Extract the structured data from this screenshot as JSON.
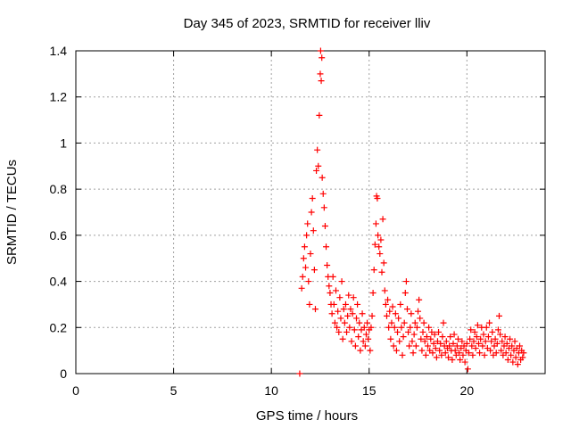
{
  "chart_data": {
    "type": "scatter",
    "title": "Day 345 of 2023, SRMTID for receiver lliv",
    "xlabel": "GPS time / hours",
    "ylabel": "SRMTID / TECUs",
    "xlim": [
      0,
      24
    ],
    "ylim": [
      0,
      1.4
    ],
    "xticks": [
      "0",
      "5",
      "10",
      "15",
      "20"
    ],
    "xtick_values": [
      0,
      5,
      10,
      15,
      20
    ],
    "yticks": [
      "0",
      "0.2",
      "0.4",
      "0.6",
      "0.8",
      "1",
      "1.2",
      "1.4"
    ],
    "ytick_values": [
      0,
      0.2,
      0.4,
      0.6,
      0.8,
      1.0,
      1.2,
      1.4
    ],
    "grid": true,
    "marker": "plus",
    "color": "#ff0000",
    "series": [
      {
        "name": "SRMTID",
        "points": [
          [
            11.45,
            0.0
          ],
          [
            11.55,
            0.37
          ],
          [
            11.6,
            0.42
          ],
          [
            11.65,
            0.5
          ],
          [
            11.7,
            0.55
          ],
          [
            11.75,
            0.46
          ],
          [
            11.8,
            0.6
          ],
          [
            11.85,
            0.65
          ],
          [
            11.9,
            0.4
          ],
          [
            11.95,
            0.3
          ],
          [
            12.0,
            0.52
          ],
          [
            12.05,
            0.7
          ],
          [
            12.1,
            0.76
          ],
          [
            12.15,
            0.62
          ],
          [
            12.2,
            0.45
          ],
          [
            12.25,
            0.28
          ],
          [
            12.3,
            0.88
          ],
          [
            12.35,
            0.97
          ],
          [
            12.4,
            0.9
          ],
          [
            12.45,
            1.12
          ],
          [
            12.5,
            1.3
          ],
          [
            12.52,
            1.4
          ],
          [
            12.55,
            1.27
          ],
          [
            12.58,
            1.37
          ],
          [
            12.6,
            0.85
          ],
          [
            12.65,
            0.78
          ],
          [
            12.7,
            0.72
          ],
          [
            12.75,
            0.64
          ],
          [
            12.8,
            0.55
          ],
          [
            12.85,
            0.47
          ],
          [
            12.9,
            0.42
          ],
          [
            12.95,
            0.38
          ],
          [
            13.0,
            0.35
          ],
          [
            13.05,
            0.3
          ],
          [
            13.1,
            0.26
          ],
          [
            13.15,
            0.42
          ],
          [
            13.2,
            0.3
          ],
          [
            13.25,
            0.22
          ],
          [
            13.3,
            0.36
          ],
          [
            13.35,
            0.2
          ],
          [
            13.4,
            0.27
          ],
          [
            13.45,
            0.18
          ],
          [
            13.5,
            0.33
          ],
          [
            13.55,
            0.24
          ],
          [
            13.6,
            0.4
          ],
          [
            13.65,
            0.15
          ],
          [
            13.7,
            0.28
          ],
          [
            13.75,
            0.22
          ],
          [
            13.8,
            0.3
          ],
          [
            13.85,
            0.18
          ],
          [
            13.9,
            0.25
          ],
          [
            13.95,
            0.34
          ],
          [
            14.0,
            0.2
          ],
          [
            14.05,
            0.28
          ],
          [
            14.1,
            0.14
          ],
          [
            14.15,
            0.26
          ],
          [
            14.2,
            0.33
          ],
          [
            14.25,
            0.19
          ],
          [
            14.3,
            0.12
          ],
          [
            14.35,
            0.24
          ],
          [
            14.4,
            0.3
          ],
          [
            14.45,
            0.16
          ],
          [
            14.5,
            0.22
          ],
          [
            14.55,
            0.1
          ],
          [
            14.6,
            0.19
          ],
          [
            14.65,
            0.26
          ],
          [
            14.7,
            0.14
          ],
          [
            14.75,
            0.2
          ],
          [
            14.8,
            0.12
          ],
          [
            14.85,
            0.17
          ],
          [
            14.9,
            0.22
          ],
          [
            14.95,
            0.15
          ],
          [
            15.0,
            0.19
          ],
          [
            15.05,
            0.1
          ],
          [
            15.1,
            0.2
          ],
          [
            15.15,
            0.25
          ],
          [
            15.2,
            0.35
          ],
          [
            15.25,
            0.45
          ],
          [
            15.3,
            0.56
          ],
          [
            15.35,
            0.65
          ],
          [
            15.38,
            0.77
          ],
          [
            15.42,
            0.76
          ],
          [
            15.45,
            0.6
          ],
          [
            15.5,
            0.55
          ],
          [
            15.55,
            0.52
          ],
          [
            15.6,
            0.58
          ],
          [
            15.65,
            0.44
          ],
          [
            15.7,
            0.67
          ],
          [
            15.75,
            0.48
          ],
          [
            15.8,
            0.36
          ],
          [
            15.85,
            0.3
          ],
          [
            15.9,
            0.25
          ],
          [
            15.95,
            0.32
          ],
          [
            16.0,
            0.2
          ],
          [
            16.05,
            0.27
          ],
          [
            16.1,
            0.15
          ],
          [
            16.15,
            0.22
          ],
          [
            16.2,
            0.29
          ],
          [
            16.25,
            0.12
          ],
          [
            16.3,
            0.2
          ],
          [
            16.35,
            0.26
          ],
          [
            16.4,
            0.1
          ],
          [
            16.45,
            0.18
          ],
          [
            16.5,
            0.24
          ],
          [
            16.55,
            0.14
          ],
          [
            16.6,
            0.3
          ],
          [
            16.65,
            0.2
          ],
          [
            16.7,
            0.08
          ],
          [
            16.75,
            0.16
          ],
          [
            16.8,
            0.22
          ],
          [
            16.85,
            0.35
          ],
          [
            16.9,
            0.4
          ],
          [
            16.95,
            0.28
          ],
          [
            17.0,
            0.18
          ],
          [
            17.05,
            0.12
          ],
          [
            17.1,
            0.2
          ],
          [
            17.15,
            0.26
          ],
          [
            17.2,
            0.14
          ],
          [
            17.25,
            0.09
          ],
          [
            17.3,
            0.17
          ],
          [
            17.35,
            0.22
          ],
          [
            17.4,
            0.12
          ],
          [
            17.45,
            0.2
          ],
          [
            17.5,
            0.27
          ],
          [
            17.55,
            0.32
          ],
          [
            17.6,
            0.24
          ],
          [
            17.65,
            0.15
          ],
          [
            17.7,
            0.1
          ],
          [
            17.75,
            0.18
          ],
          [
            17.8,
            0.22
          ],
          [
            17.85,
            0.14
          ],
          [
            17.9,
            0.08
          ],
          [
            17.95,
            0.16
          ],
          [
            18.0,
            0.12
          ],
          [
            18.05,
            0.2
          ],
          [
            18.1,
            0.1
          ],
          [
            18.15,
            0.15
          ],
          [
            18.2,
            0.18
          ],
          [
            18.25,
            0.09
          ],
          [
            18.3,
            0.13
          ],
          [
            18.35,
            0.17
          ],
          [
            18.4,
            0.11
          ],
          [
            18.45,
            0.07
          ],
          [
            18.5,
            0.14
          ],
          [
            18.55,
            0.18
          ],
          [
            18.6,
            0.1
          ],
          [
            18.65,
            0.13
          ],
          [
            18.7,
            0.08
          ],
          [
            18.75,
            0.16
          ],
          [
            18.8,
            0.22
          ],
          [
            18.85,
            0.12
          ],
          [
            18.9,
            0.09
          ],
          [
            18.95,
            0.14
          ],
          [
            19.0,
            0.11
          ],
          [
            19.05,
            0.07
          ],
          [
            19.1,
            0.12
          ],
          [
            19.15,
            0.16
          ],
          [
            19.2,
            0.1
          ],
          [
            19.25,
            0.06
          ],
          [
            19.3,
            0.13
          ],
          [
            19.35,
            0.17
          ],
          [
            19.4,
            0.1
          ],
          [
            19.45,
            0.08
          ],
          [
            19.5,
            0.12
          ],
          [
            19.55,
            0.15
          ],
          [
            19.6,
            0.09
          ],
          [
            19.65,
            0.06
          ],
          [
            19.7,
            0.11
          ],
          [
            19.75,
            0.14
          ],
          [
            19.8,
            0.08
          ],
          [
            19.85,
            0.12
          ],
          [
            19.9,
            0.05
          ],
          [
            19.95,
            0.1
          ],
          [
            20.0,
            0.13
          ],
          [
            20.05,
            0.02
          ],
          [
            20.1,
            0.09
          ],
          [
            20.15,
            0.15
          ],
          [
            20.2,
            0.19
          ],
          [
            20.25,
            0.12
          ],
          [
            20.3,
            0.08
          ],
          [
            20.35,
            0.14
          ],
          [
            20.4,
            0.18
          ],
          [
            20.45,
            0.11
          ],
          [
            20.5,
            0.16
          ],
          [
            20.55,
            0.21
          ],
          [
            20.6,
            0.13
          ],
          [
            20.65,
            0.09
          ],
          [
            20.7,
            0.15
          ],
          [
            20.75,
            0.2
          ],
          [
            20.8,
            0.12
          ],
          [
            20.85,
            0.17
          ],
          [
            20.9,
            0.08
          ],
          [
            20.95,
            0.14
          ],
          [
            21.0,
            0.2
          ],
          [
            21.05,
            0.11
          ],
          [
            21.1,
            0.16
          ],
          [
            21.15,
            0.22
          ],
          [
            21.2,
            0.1
          ],
          [
            21.25,
            0.14
          ],
          [
            21.3,
            0.18
          ],
          [
            21.35,
            0.08
          ],
          [
            21.4,
            0.12
          ],
          [
            21.45,
            0.15
          ],
          [
            21.5,
            0.09
          ],
          [
            21.55,
            0.13
          ],
          [
            21.6,
            0.19
          ],
          [
            21.65,
            0.25
          ],
          [
            21.7,
            0.17
          ],
          [
            21.75,
            0.1
          ],
          [
            21.8,
            0.14
          ],
          [
            21.85,
            0.08
          ],
          [
            21.9,
            0.12
          ],
          [
            21.95,
            0.16
          ],
          [
            22.0,
            0.09
          ],
          [
            22.05,
            0.13
          ],
          [
            22.1,
            0.06
          ],
          [
            22.15,
            0.11
          ],
          [
            22.2,
            0.15
          ],
          [
            22.25,
            0.08
          ],
          [
            22.3,
            0.12
          ],
          [
            22.35,
            0.05
          ],
          [
            22.4,
            0.1
          ],
          [
            22.45,
            0.14
          ],
          [
            22.5,
            0.07
          ],
          [
            22.55,
            0.11
          ],
          [
            22.6,
            0.04
          ],
          [
            22.65,
            0.09
          ],
          [
            22.7,
            0.12
          ],
          [
            22.75,
            0.06
          ],
          [
            22.8,
            0.1
          ],
          [
            22.85,
            0.07
          ],
          [
            22.9,
            0.09
          ]
        ]
      }
    ]
  }
}
